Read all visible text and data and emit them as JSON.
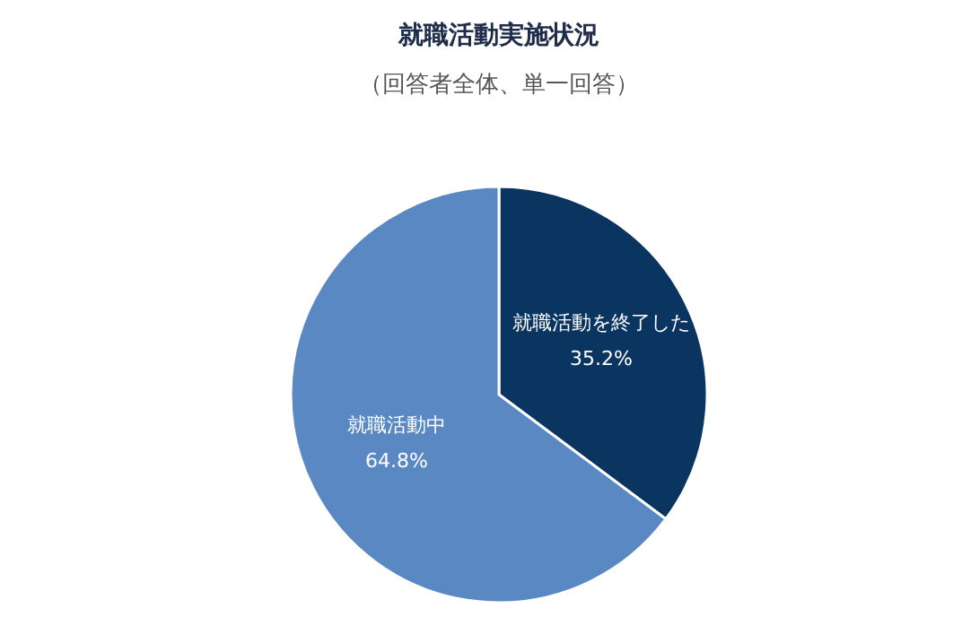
{
  "chart_data": {
    "type": "pie",
    "title": "就職活動実施状況",
    "subtitle": "（回答者全体、単一回答）",
    "categories": [
      "就職活動を終了した",
      "就職活動中"
    ],
    "values": [
      35.2,
      64.8
    ],
    "value_labels": [
      "35.2%",
      "64.8%"
    ],
    "colors": [
      "#0b3561",
      "#5a88c2"
    ],
    "legend": false
  }
}
